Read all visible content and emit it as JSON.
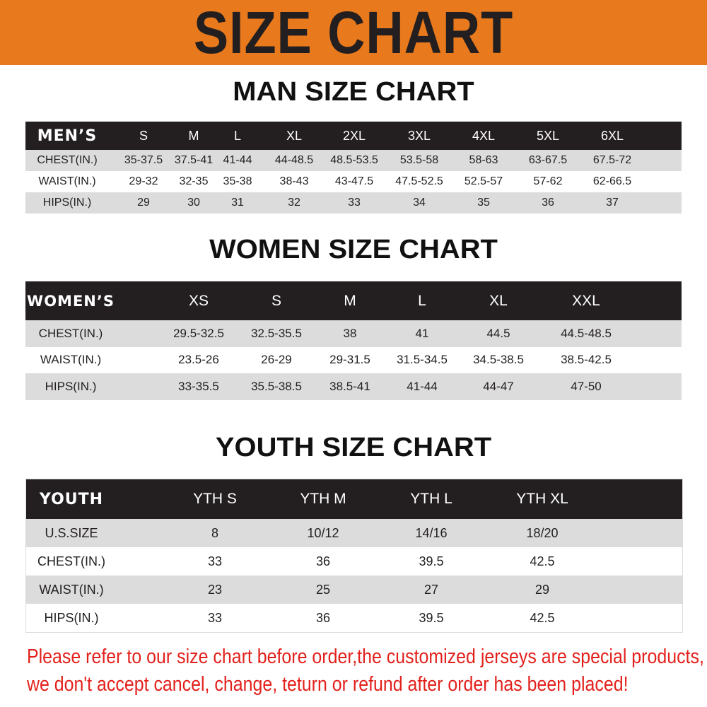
{
  "banner": {
    "title": "SIZE CHART",
    "color": "#e8791c"
  },
  "men": {
    "title": "MAN SIZE CHART",
    "headers": [
      "MEN’S",
      "S",
      "M",
      "L",
      "XL",
      "2XL",
      "3XL",
      "4XL",
      "5XL",
      "6XL"
    ],
    "rows": [
      [
        "CHEST(IN.)",
        "35-37.5",
        "37.5-41",
        "41-44",
        "44-48.5",
        "48.5-53.5",
        "53.5-58",
        "58-63",
        "63-67.5",
        "67.5-72"
      ],
      [
        "WAIST(IN.)",
        "29-32",
        "32-35",
        "35-38",
        "38-43",
        "43-47.5",
        "47.5-52.5",
        "52.5-57",
        "57-62",
        "62-66.5"
      ],
      [
        "HIPS(IN.)",
        "29",
        "30",
        "31",
        "32",
        "33",
        "34",
        "35",
        "36",
        "37"
      ]
    ]
  },
  "women": {
    "title": "WOMEN SIZE CHART",
    "headers": [
      "WOMEN’S",
      "XS",
      "S",
      "M",
      "L",
      "XL",
      "XXL"
    ],
    "rows": [
      [
        "CHEST(IN.)",
        "29.5-32.5",
        "32.5-35.5",
        "38",
        "41",
        "44.5",
        "44.5-48.5"
      ],
      [
        "WAIST(IN.)",
        "23.5-26",
        "26-29",
        "29-31.5",
        "31.5-34.5",
        "34.5-38.5",
        "38.5-42.5"
      ],
      [
        "HIPS(IN.)",
        "33-35.5",
        "35.5-38.5",
        "38.5-41",
        "41-44",
        "44-47",
        "47-50"
      ]
    ]
  },
  "youth": {
    "title": "YOUTH SIZE CHART",
    "headers": [
      "YOUTH",
      "YTH S",
      "YTH M",
      "YTH L",
      "YTH XL"
    ],
    "rows": [
      [
        "U.S.SIZE",
        "8",
        "10/12",
        "14/16",
        "18/20"
      ],
      [
        "CHEST(IN.)",
        "33",
        "36",
        "39.5",
        "42.5"
      ],
      [
        "WAIST(IN.)",
        "23",
        "25",
        "27",
        "29"
      ],
      [
        "HIPS(IN.)",
        "33",
        "36",
        "39.5",
        "42.5"
      ]
    ]
  },
  "notice": {
    "line1": "Please refer to our size chart before order,the customized jerseys are special products,",
    "line2": "we don't accept cancel, change, teturn or refund after order has been placed!",
    "color": "#e3211c"
  }
}
